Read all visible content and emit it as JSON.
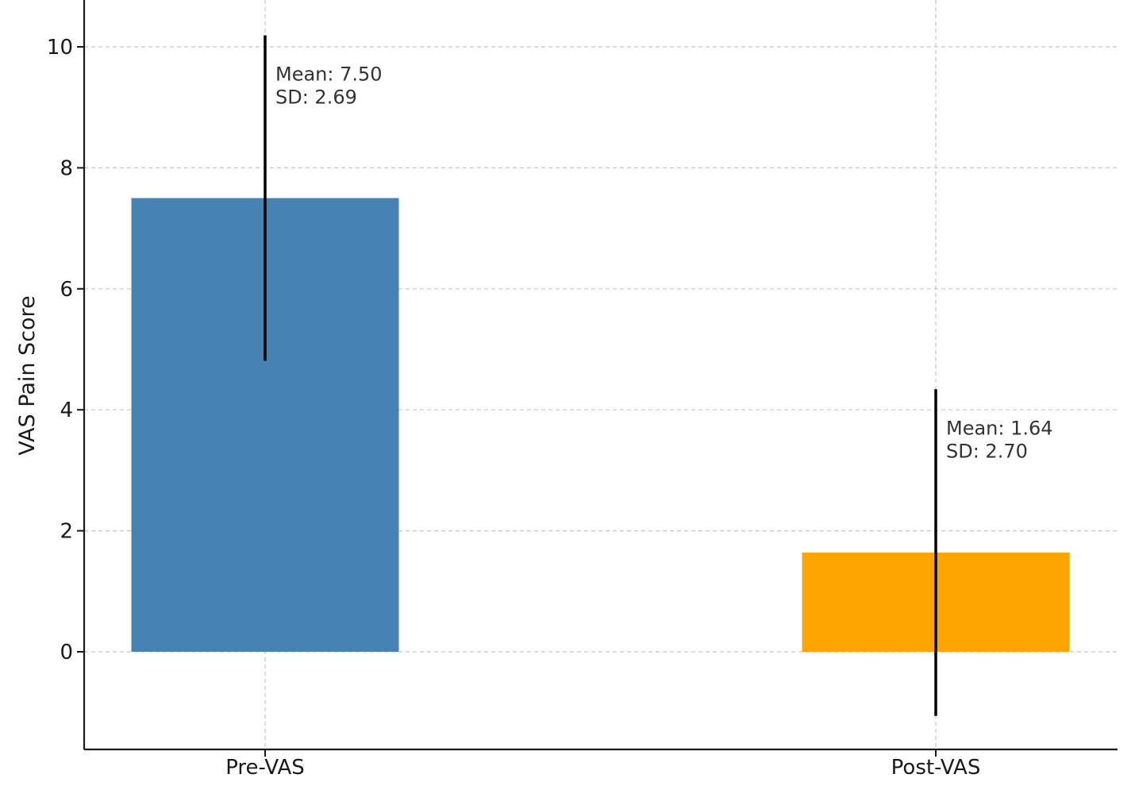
{
  "chart_data": {
    "type": "bar",
    "title": "",
    "xlabel": "",
    "ylabel": "VAS Pain Score",
    "categories": [
      "Pre-VAS",
      "Post-VAS"
    ],
    "values": [
      7.5,
      1.64
    ],
    "error": [
      2.69,
      2.7
    ],
    "colors": [
      "#4682b4",
      "#ffa500"
    ],
    "annotations": [
      [
        "Mean: 7.50",
        "SD: 2.69"
      ],
      [
        "Mean: 1.64",
        "SD: 2.70"
      ]
    ],
    "ylim": [
      -1.6,
      10.8
    ],
    "yticks": [
      0,
      2,
      4,
      6,
      8,
      10
    ],
    "grid": true,
    "error_color": "#000000",
    "grid_color": "#c8c8c8"
  }
}
